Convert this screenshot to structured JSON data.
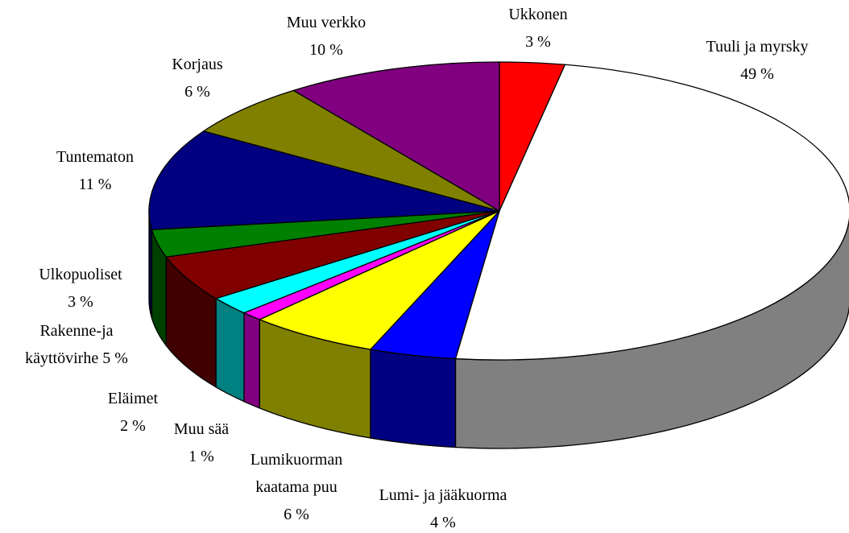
{
  "chart_data": {
    "type": "pie",
    "categories": [
      "Ukkonen",
      "Tuuli ja myrsky",
      "Lumi- ja jääkuorma",
      "Lumikuorman kaatama puu",
      "Muu sää",
      "Eläimet",
      "Rakenne-ja käyttövirhe",
      "Ulkopuoliset",
      "Tuntematon",
      "Korjaus",
      "Muu verkko"
    ],
    "values": [
      3,
      49,
      4,
      6,
      1,
      2,
      5,
      3,
      11,
      6,
      10
    ],
    "value_labels": [
      "3 %",
      "49 %",
      "4 %",
      "6 %",
      "1 %",
      "2 %",
      "5 %",
      "3 %",
      "11 %",
      "6 %",
      "10 %"
    ],
    "colors": [
      "#ff0000",
      "#ffffff",
      "#0000ff",
      "#ffff00",
      "#ff00ff",
      "#00ffff",
      "#800000",
      "#008000",
      "#000080",
      "#808000",
      "#800080"
    ]
  }
}
